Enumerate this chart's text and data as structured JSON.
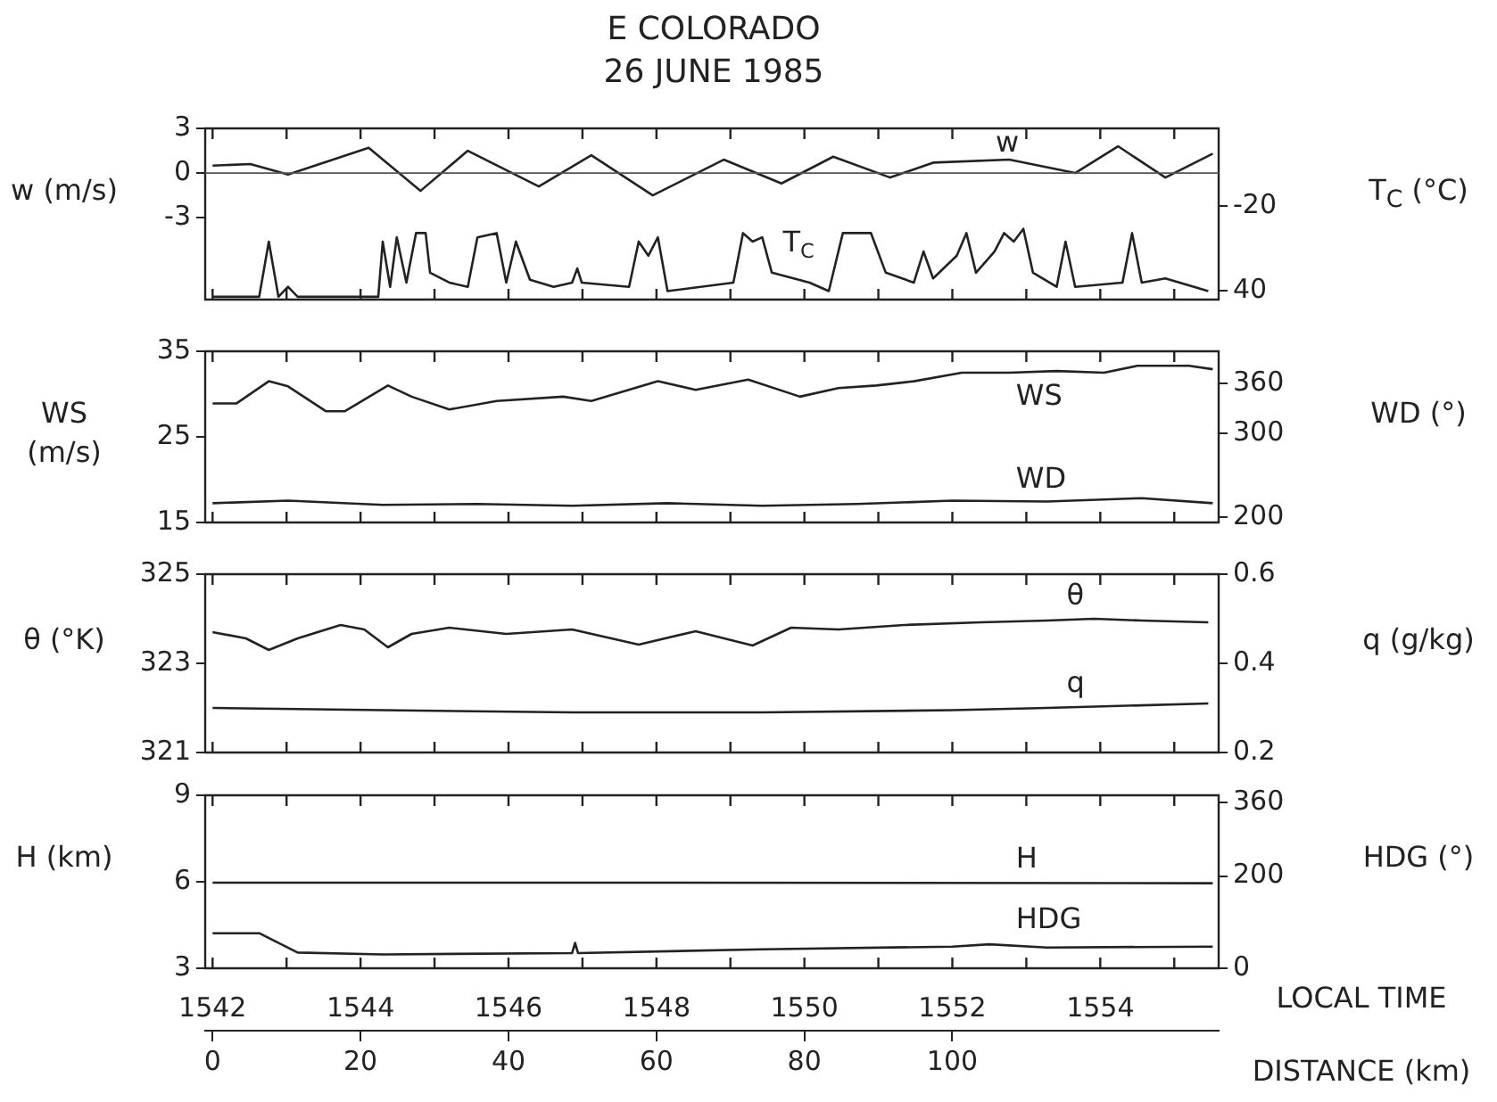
{
  "chart_data": [
    {
      "type": "line",
      "title": "E COLORADO",
      "subtitle": "26 JUNE 1985",
      "ylabel": "w (m/s)",
      "y2label": "T$_{C}$ (°C)",
      "xlim": [
        1541.9,
        1555.6
      ],
      "xticks": [
        1542,
        {
          "value": 1543,
          "label": null
        },
        1544,
        {
          "value": 1545,
          "label": null
        },
        1546,
        {
          "value": 1547,
          "label": null
        },
        1548,
        {
          "value": 1549,
          "label": null
        },
        1550,
        {
          "value": 1551,
          "label": null
        },
        1552,
        {
          "value": 1553,
          "label": null
        },
        1554,
        {
          "value": 1555,
          "label": null
        }
      ],
      "ylim": [
        -8.5,
        3
      ],
      "yticks": [
        -3,
        0,
        3
      ],
      "y2lim": [
        46,
        -75
      ],
      "y2ticks": [
        -20,
        40
      ],
      "tick_labels": "y",
      "grid": false,
      "legend": "top right",
      "marker": "none",
      "line_style": "solid",
      "ref_lines": [
        {
          "axis": "y",
          "value": 0
        }
      ],
      "series": [
        {
          "name": "w",
          "color": "#222222",
          "x": [
            1542,
            1542.51,
            1543.02,
            1544.11,
            1544.81,
            1545.45,
            1546.41,
            1547.12,
            1547.95,
            1548.91,
            1549.69,
            1550.39,
            1551.16,
            1551.74,
            1552.77,
            1553.66,
            1554.24,
            1554.88,
            1555.52
          ],
          "values": [
            0.5,
            0.6,
            -0.1,
            1.7,
            -1.2,
            1.5,
            -0.9,
            1.2,
            -1.5,
            0.9,
            -0.7,
            1.1,
            -0.3,
            0.7,
            0.9,
            0,
            1.8,
            -0.3,
            1.3
          ]
        },
        {
          "name": "T$_{C}$",
          "color": "#222222",
          "axis": "y2",
          "x": [
            1542,
            1542.63,
            1542.76,
            1542.89,
            1543.02,
            1543.15,
            1544.24,
            1544.3,
            1544.4,
            1544.49,
            1544.62,
            1544.75,
            1544.88,
            1544.94,
            1545.2,
            1545.45,
            1545.58,
            1545.84,
            1545.97,
            1546.1,
            1546.29,
            1546.61,
            1546.86,
            1546.93,
            1546.99,
            1547.63,
            1547.76,
            1547.89,
            1548.02,
            1548.15,
            1549.04,
            1549.17,
            1549.3,
            1549.43,
            1549.56,
            1550.07,
            1550.33,
            1550.52,
            1550.9,
            1551.1,
            1551.48,
            1551.61,
            1551.74,
            1552.06,
            1552.19,
            1552.32,
            1552.57,
            1552.7,
            1552.83,
            1552.96,
            1553.09,
            1553.41,
            1553.53,
            1553.66,
            1554.3,
            1554.43,
            1554.56,
            1554.88,
            1555.46
          ],
          "values": [
            44,
            44,
            5,
            44,
            37,
            44,
            44,
            5,
            37,
            2,
            34,
            -1,
            -1,
            27,
            34,
            37,
            2,
            -1,
            34,
            5,
            32,
            37,
            34,
            24,
            34,
            37,
            5,
            15,
            2,
            40,
            34,
            -1,
            5,
            2,
            27,
            34,
            40,
            -1,
            -1,
            27,
            34,
            12,
            31,
            15,
            -1,
            27,
            12,
            -1,
            5,
            -4,
            27,
            37,
            5,
            37,
            34,
            -1,
            34,
            31,
            40
          ]
        }
      ]
    },
    {
      "type": "line",
      "ylabel": "WS (m/s)",
      "y2label": "WD (°)",
      "xlim": [
        1541.9,
        1555.6
      ],
      "xticks": [
        1542,
        {
          "value": 1543,
          "label": null
        },
        1544,
        {
          "value": 1545,
          "label": null
        },
        1546,
        {
          "value": 1547,
          "label": null
        },
        1548,
        {
          "value": 1549,
          "label": null
        },
        1550,
        {
          "value": 1551,
          "label": null
        },
        1552,
        {
          "value": 1553,
          "label": null
        },
        1554,
        {
          "value": 1555,
          "label": null
        }
      ],
      "ylim": [
        15,
        35
      ],
      "yticks": [
        15,
        25,
        35
      ],
      "y2lim": [
        194,
        398
      ],
      "y2ticks": [
        200,
        300,
        360
      ],
      "tick_labels": "y",
      "grid": false,
      "legend": "top right",
      "marker": "none",
      "line_style": "solid",
      "series": [
        {
          "name": "WS",
          "color": "#222222",
          "x": [
            1542,
            1542.32,
            1542.76,
            1543.02,
            1543.53,
            1543.79,
            1544.37,
            1544.69,
            1545.2,
            1545.84,
            1546.74,
            1547.12,
            1548.02,
            1548.53,
            1549.24,
            1549.94,
            1550.46,
            1550.97,
            1551.48,
            1552.13,
            1552.77,
            1553.41,
            1554.05,
            1554.5,
            1555.2,
            1555.52
          ],
          "values": [
            28.9,
            28.9,
            31.5,
            30.9,
            28,
            28,
            31,
            29.7,
            28.2,
            29.2,
            29.7,
            29.2,
            31.5,
            30.5,
            31.7,
            29.7,
            30.7,
            31,
            31.5,
            32.5,
            32.5,
            32.7,
            32.5,
            33.3,
            33.3,
            32.9
          ]
        },
        {
          "name": "WD",
          "color": "#222222",
          "axis": "y2",
          "x": [
            1542,
            1543.02,
            1544.3,
            1545.58,
            1546.86,
            1548.15,
            1549.43,
            1550.71,
            1552,
            1553.28,
            1554.56,
            1555.52
          ],
          "values": [
            217,
            220,
            215,
            216,
            214,
            217,
            214,
            216,
            220,
            219,
            223,
            217
          ]
        }
      ]
    },
    {
      "type": "line",
      "ylabel": "θ (°K)",
      "y2label": "q (g/kg)",
      "xlim": [
        1541.9,
        1555.6
      ],
      "xticks": [
        1542,
        {
          "value": 1543,
          "label": null
        },
        1544,
        {
          "value": 1545,
          "label": null
        },
        1546,
        {
          "value": 1547,
          "label": null
        },
        1548,
        {
          "value": 1549,
          "label": null
        },
        1550,
        {
          "value": 1551,
          "label": null
        },
        1552,
        {
          "value": 1553,
          "label": null
        },
        1554,
        {
          "value": 1555,
          "label": null
        }
      ],
      "ylim": [
        321,
        325
      ],
      "yticks": [
        321,
        323,
        325
      ],
      "y2lim": [
        0.2,
        0.6
      ],
      "y2ticks": [
        0.2,
        0.4,
        0.6
      ],
      "tick_labels": "y",
      "grid": false,
      "legend": "top right",
      "marker": "none",
      "line_style": "solid",
      "series": [
        {
          "name": "θ",
          "color": "#222222",
          "x": [
            1542,
            1542.45,
            1542.76,
            1543.15,
            1543.73,
            1544.05,
            1544.37,
            1544.69,
            1545.2,
            1545.97,
            1546.86,
            1547.76,
            1548.53,
            1549.3,
            1549.82,
            1550.46,
            1551.35,
            1552.38,
            1553.28,
            1553.92,
            1554.56,
            1555.46
          ],
          "values": [
            323.7,
            323.56,
            323.3,
            323.56,
            323.86,
            323.76,
            323.36,
            323.66,
            323.8,
            323.66,
            323.76,
            323.42,
            323.72,
            323.4,
            323.8,
            323.76,
            323.86,
            323.92,
            323.96,
            324,
            323.96,
            323.92
          ]
        },
        {
          "name": "q",
          "color": "#222222",
          "axis": "y2",
          "x": [
            1542,
            1544.3,
            1546.86,
            1549.43,
            1552,
            1553.28,
            1555.46
          ],
          "values": [
            0.3,
            0.295,
            0.29,
            0.29,
            0.295,
            0.3,
            0.31
          ]
        }
      ]
    },
    {
      "type": "line",
      "ylabel": "H (km)",
      "y2label": "HDG (°)",
      "xlabel": "LOCAL TIME",
      "x2label": "DISTANCE (km)",
      "xlim": [
        1541.9,
        1555.6
      ],
      "xticks": [
        1542,
        {
          "value": 1543,
          "label": null
        },
        1544,
        {
          "value": 1545,
          "label": null
        },
        1546,
        {
          "value": 1547,
          "label": null
        },
        1548,
        {
          "value": 1549,
          "label": null
        },
        1550,
        {
          "value": 1551,
          "label": null
        },
        1552,
        {
          "value": 1553,
          "label": null
        },
        1554,
        {
          "value": 1555,
          "label": null
        }
      ],
      "x2lim": [
        -1,
        136
      ],
      "x2ticks": [
        0,
        20,
        40,
        60,
        80,
        100
      ],
      "ylim": [
        3,
        9
      ],
      "yticks": [
        3,
        6,
        9
      ],
      "y2lim": [
        0,
        375
      ],
      "y2ticks": [
        0,
        200,
        360
      ],
      "grid": false,
      "legend": "right",
      "marker": "none",
      "line_style": "solid",
      "series": [
        {
          "name": "H",
          "color": "#222222",
          "x": [
            1542,
            1548,
            1555.52
          ],
          "values": [
            5.97,
            5.97,
            5.95
          ]
        },
        {
          "name": "HDG",
          "color": "#222222",
          "axis": "y2",
          "x": [
            1542,
            1542.63,
            1543.15,
            1544.3,
            1546.86,
            1546.9,
            1546.94,
            1549.43,
            1552,
            1552.5,
            1553.28,
            1555.52
          ],
          "values": [
            76,
            76,
            34,
            30,
            33,
            55,
            33,
            41,
            47,
            52,
            45,
            47
          ]
        }
      ]
    }
  ]
}
